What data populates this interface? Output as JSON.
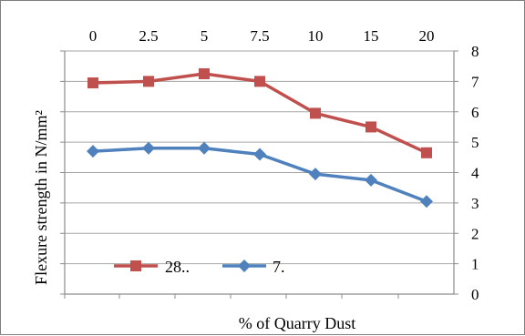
{
  "chart_data": {
    "type": "line",
    "categories": [
      "0",
      "2.5",
      "5",
      "7.5",
      "10",
      "15",
      "20"
    ],
    "series": [
      {
        "name": "28..",
        "values": [
          6.95,
          7.0,
          7.25,
          7.0,
          5.95,
          5.5,
          4.65
        ],
        "color": "#c0504d",
        "marker": "square"
      },
      {
        "name": "7.",
        "values": [
          4.7,
          4.8,
          4.8,
          4.6,
          3.95,
          3.75,
          3.05
        ],
        "color": "#4f81bd",
        "marker": "diamond"
      }
    ],
    "xlabel": "% of Quarry Dust",
    "ylabel": "Flexure strength in N/mm²",
    "y_ticks": [
      "0",
      "1",
      "2",
      "3",
      "4",
      "5",
      "6",
      "7",
      "8"
    ],
    "ylim": [
      0,
      8
    ],
    "grid": true,
    "legend_position": "bottom-left"
  }
}
